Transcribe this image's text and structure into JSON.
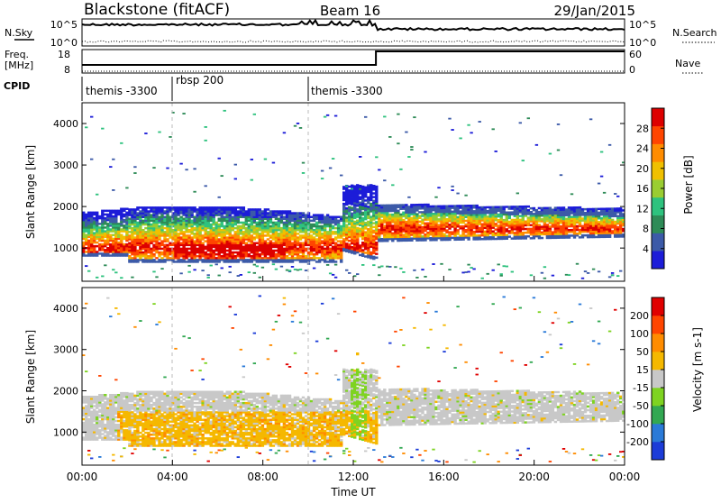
{
  "header": {
    "site": "Blackstone (fitACF)",
    "beam": "Beam 16",
    "date": "29/Jan/2015"
  },
  "top_panels": {
    "nsky_label": "N.Sky",
    "nsearch_label": "N.Search",
    "freq_label_line1": "Freq.",
    "freq_label_line2": "[MHz]",
    "nave_label": "Nave",
    "cpid_label": "CPID",
    "nsky_ticks": [
      "10^5",
      "10^0"
    ],
    "nsearch_ticks": [
      "10^5",
      "10^0"
    ],
    "freq_ticks": [
      "18",
      "8"
    ],
    "nave_ticks": [
      "60",
      "0"
    ],
    "cpid_segments": [
      {
        "label": "themis -3300",
        "start_hour": 0.0
      },
      {
        "label": "rbsp 200",
        "start_hour": 4.0
      },
      {
        "label": "themis -3300",
        "start_hour": 10.0
      }
    ]
  },
  "chart_data": [
    {
      "type": "heatmap",
      "name": "power",
      "ylabel": "Slant Range [km]",
      "ylim": [
        200,
        4500
      ],
      "xlim_hours": [
        0,
        24
      ],
      "y_ticks": [
        "4000",
        "3000",
        "2000",
        "1000"
      ],
      "colorbar_label": "Power [dB]",
      "colorbar_ticks": [
        "28",
        "24",
        "20",
        "16",
        "12",
        "8",
        "4"
      ],
      "colorbar_range": [
        0,
        30
      ],
      "colors": [
        "#1c1cd8",
        "#3c5aa8",
        "#2e8b57",
        "#2ec27e",
        "#9acd32",
        "#f0c000",
        "#ff8c00",
        "#ff4500",
        "#dd0000"
      ]
    },
    {
      "type": "heatmap",
      "name": "velocity",
      "ylabel": "Slant Range [km]",
      "ylim": [
        200,
        4500
      ],
      "xlim_hours": [
        0,
        24
      ],
      "y_ticks": [
        "4000",
        "3000",
        "2000",
        "1000"
      ],
      "colorbar_label": "Velocity [m s-1]",
      "colorbar_ticks": [
        "200",
        "100",
        "50",
        "15",
        "-15",
        "-50",
        "-100",
        "-200"
      ],
      "colors": [
        "#1c3cd8",
        "#2a7ad8",
        "#32a852",
        "#7ed321",
        "#c8c8c8",
        "#f5b800",
        "#ff8c00",
        "#ff4500",
        "#e00000"
      ]
    }
  ],
  "xaxis": {
    "label": "Time UT",
    "ticks": [
      "00:00",
      "04:00",
      "08:00",
      "12:00",
      "16:00",
      "20:00",
      "00:00"
    ]
  }
}
